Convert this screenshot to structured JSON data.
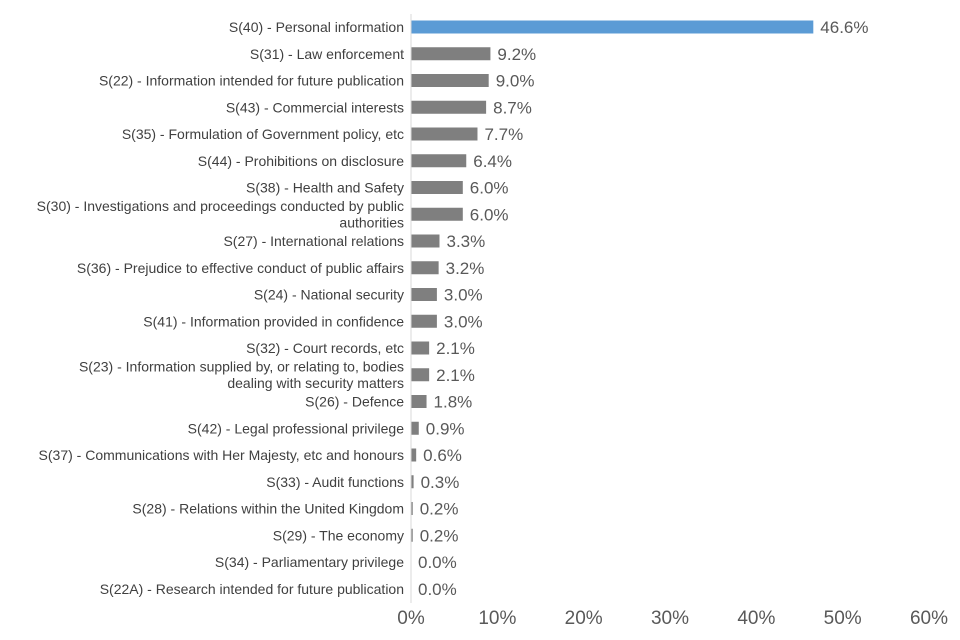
{
  "chart_data": {
    "type": "bar",
    "orientation": "horizontal",
    "title": "",
    "xlabel": "",
    "ylabel": "",
    "xlim": [
      0,
      60
    ],
    "x_ticks": [
      "0%",
      "10%",
      "20%",
      "30%",
      "40%",
      "50%",
      "60%"
    ],
    "x_tick_values": [
      0,
      10,
      20,
      30,
      40,
      50,
      60
    ],
    "grid": false,
    "legend": "none",
    "colors": {
      "highlight": "#5b9bd5",
      "default": "#7f7f7f",
      "axis": "#d9d9d9",
      "category_text": "#404040",
      "value_text": "#595959"
    },
    "categories": [
      "S(40) - Personal information",
      "S(31) - Law enforcement",
      "S(22) - Information intended for future publication",
      "S(43) - Commercial interests",
      "S(35) - Formulation of Government policy, etc",
      "S(44) - Prohibitions on disclosure",
      "S(38) - Health and Safety",
      "S(30) - Investigations and proceedings conducted by public authorities",
      "S(27) - International relations",
      "S(36) - Prejudice to effective conduct of public affairs",
      "S(24) - National security",
      "S(41) - Information provided in confidence",
      "S(32) - Court records, etc",
      "S(23) - Information supplied by, or relating to, bodies dealing with security matters",
      "S(26) - Defence",
      "S(42) - Legal professional privilege",
      "S(37) - Communications with Her Majesty, etc and honours",
      "S(33) - Audit functions",
      "S(28) - Relations within the United Kingdom",
      "S(29) - The economy",
      "S(34) - Parliamentary privilege",
      "S(22A) - Research intended for future publication"
    ],
    "category_lines": [
      [
        "S(40) - Personal information"
      ],
      [
        "S(31) - Law enforcement"
      ],
      [
        "S(22) - Information intended for future publication"
      ],
      [
        "S(43) - Commercial interests"
      ],
      [
        "S(35) - Formulation of Government policy, etc"
      ],
      [
        "S(44) - Prohibitions on disclosure"
      ],
      [
        "S(38) - Health and Safety"
      ],
      [
        "S(30) - Investigations and proceedings conducted by public",
        "authorities"
      ],
      [
        "S(27) - International relations"
      ],
      [
        "S(36) - Prejudice to effective conduct of public affairs"
      ],
      [
        "S(24) - National security"
      ],
      [
        "S(41) - Information provided in confidence"
      ],
      [
        "S(32) - Court records, etc"
      ],
      [
        "S(23) - Information supplied by, or relating to, bodies",
        "dealing with security matters"
      ],
      [
        "S(26) - Defence"
      ],
      [
        "S(42) - Legal professional privilege"
      ],
      [
        "S(37) - Communications with Her Majesty, etc and honours"
      ],
      [
        "S(33) - Audit functions"
      ],
      [
        "S(28) - Relations within the United Kingdom"
      ],
      [
        "S(29) - The economy"
      ],
      [
        "S(34) - Parliamentary privilege"
      ],
      [
        "S(22A) - Research intended for future publication"
      ]
    ],
    "values": [
      46.6,
      9.2,
      9.0,
      8.7,
      7.7,
      6.4,
      6.0,
      6.0,
      3.3,
      3.2,
      3.0,
      3.0,
      2.1,
      2.1,
      1.8,
      0.9,
      0.6,
      0.3,
      0.2,
      0.2,
      0.0,
      0.0
    ],
    "value_labels": [
      "46.6%",
      "9.2%",
      "9.0%",
      "8.7%",
      "7.7%",
      "6.4%",
      "6.0%",
      "6.0%",
      "3.3%",
      "3.2%",
      "3.0%",
      "3.0%",
      "2.1%",
      "2.1%",
      "1.8%",
      "0.9%",
      "0.6%",
      "0.3%",
      "0.2%",
      "0.2%",
      "0.0%",
      "0.0%"
    ],
    "highlight_index": 0
  }
}
